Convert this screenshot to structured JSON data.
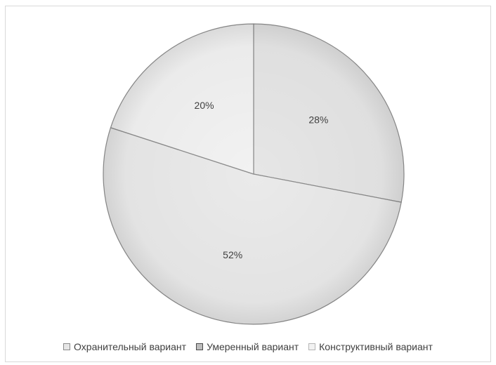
{
  "chart_data": {
    "type": "pie",
    "title": "",
    "series": [
      {
        "name": "Охранительный вариант",
        "value": 28,
        "label": "28%",
        "color": "#e6e6e6"
      },
      {
        "name": "Умеренный вариант",
        "value": 52,
        "label": "52%",
        "color": "#eaeaea"
      },
      {
        "name": "Конструктивный вариант",
        "value": 20,
        "label": "20%",
        "color": "#f2f2f2"
      }
    ],
    "unit": "%",
    "start_angle": "12 o'clock",
    "direction": "clockwise",
    "legend_position": "bottom",
    "slice_edge_color": "#8c8c8c"
  }
}
